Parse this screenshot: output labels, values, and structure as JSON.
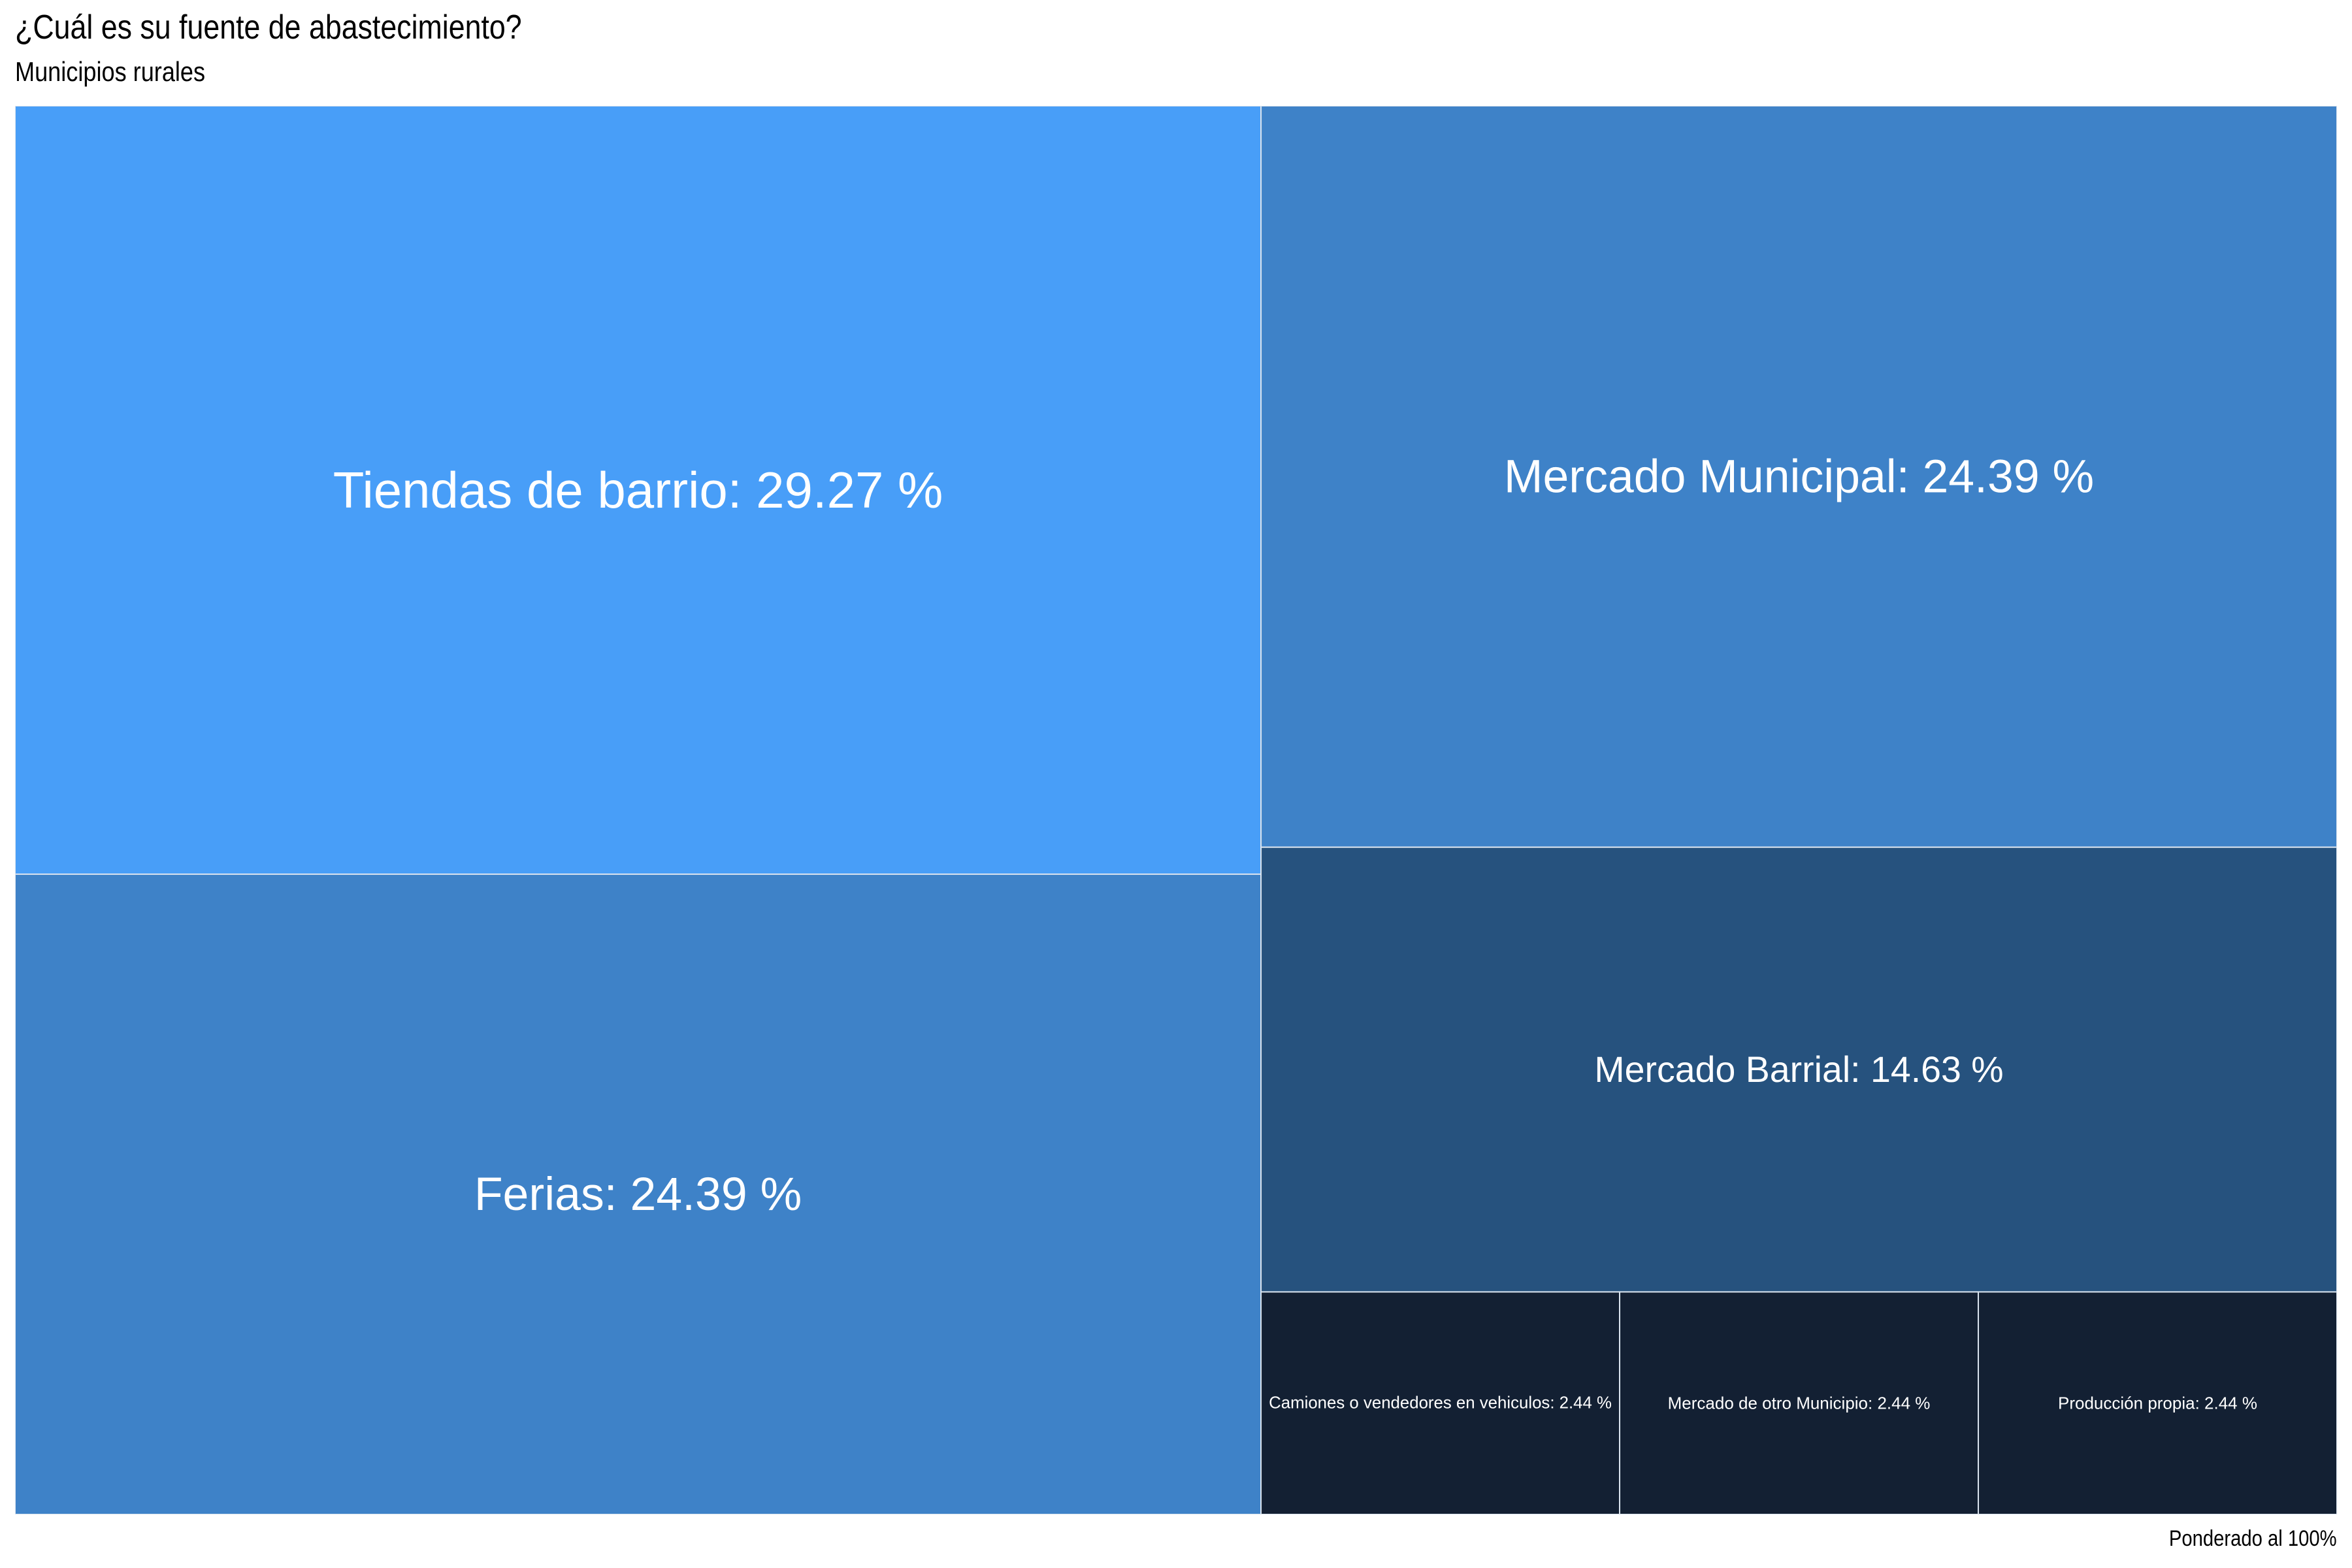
{
  "chart_data": {
    "type": "treemap",
    "title": "¿Cuál es su fuente de abastecimiento?",
    "subtitle": "Municipios rurales",
    "caption": "Ponderado al 100%",
    "label_format": "{name}: {value} %",
    "items": [
      {
        "name": "Tiendas de barrio",
        "value": 29.27,
        "label": "Tiendas de barrio: 29.27 %",
        "color": "#489ef8"
      },
      {
        "name": "Ferias",
        "value": 24.39,
        "label": "Ferias: 24.39 %",
        "color": "#3e82c8"
      },
      {
        "name": "Mercado Municipal",
        "value": 24.39,
        "label": "Mercado Municipal: 24.39 %",
        "color": "#3e82c8"
      },
      {
        "name": "Mercado Barrial",
        "value": 14.63,
        "label": "Mercado Barrial: 14.63 %",
        "color": "#26527e"
      },
      {
        "name": "Camiones o vendedores en vehiculos",
        "value": 2.44,
        "label": "Camiones o vendedores en vehiculos: 2.44 %",
        "color": "#132033"
      },
      {
        "name": "Mercado de otro Municipio",
        "value": 2.44,
        "label": "Mercado de otro Municipio: 2.44 %",
        "color": "#132033"
      },
      {
        "name": "Producción propia",
        "value": 2.44,
        "label": "Producción propia: 2.44 %",
        "color": "#132033"
      }
    ],
    "border_color": "#d9e3ee",
    "label_color": "#ffffff"
  }
}
